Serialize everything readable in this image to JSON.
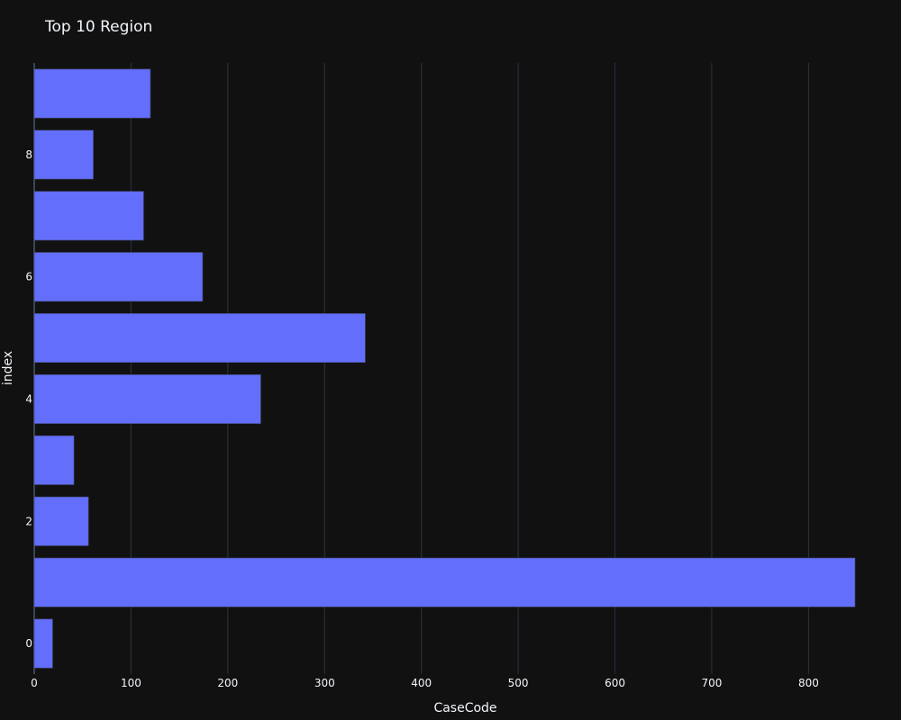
{
  "chart_data": {
    "type": "bar",
    "orientation": "horizontal",
    "title": "Top 10 Region",
    "xlabel": "CaseCode",
    "ylabel": "index",
    "x_ticks": [
      0,
      100,
      200,
      300,
      400,
      500,
      600,
      700,
      800
    ],
    "xlim": [
      0,
      862
    ],
    "y_ticks": [
      0,
      2,
      4,
      6,
      8
    ],
    "ylim": [
      -0.5,
      9.5
    ],
    "categories": [
      0,
      1,
      2,
      3,
      4,
      5,
      6,
      7,
      8,
      9
    ],
    "values": [
      19,
      848,
      56,
      41,
      234,
      342,
      174,
      113,
      61,
      120
    ],
    "bar_color": "#636efa",
    "background_color": "#111111",
    "grid": true,
    "legend": "none"
  }
}
